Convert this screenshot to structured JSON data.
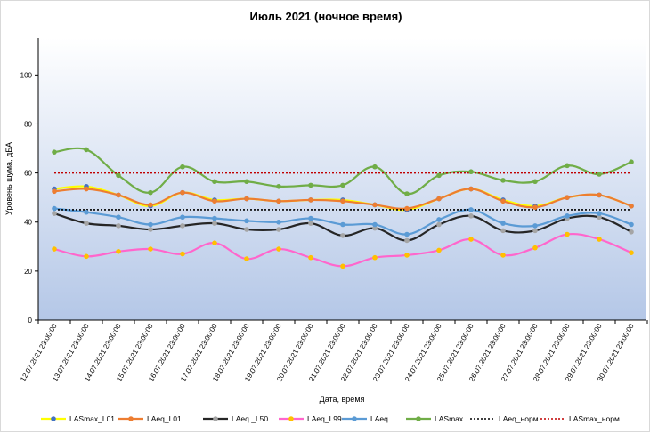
{
  "chart_data": {
    "type": "line",
    "title": "Июль 2021 (ночное время)",
    "xlabel": "Дата, время",
    "ylabel": "Уровень шума, дБА",
    "ylim": [
      0,
      115
    ],
    "yticks": [
      0,
      20,
      40,
      60,
      80,
      100
    ],
    "grid": false,
    "legend_position": "bottom",
    "categories": [
      "12.07.2021 23:00:00",
      "13.07.2021 23:00:00",
      "14.07.2021 23:00:00",
      "15.07.2021 23:00:00",
      "16.07.2021 23:00:00",
      "17.07.2021 23:00:00",
      "18.07.2021 23:00:00",
      "19.07.2021 23:00:00",
      "20.07.2021 23:00:00",
      "21.07.2021 23:00:00",
      "22.07.2021 23:00:00",
      "23.07.2021 23:00:00",
      "24.07.2021 23:00:00",
      "25.07.2021 23:00:00",
      "26.07.2021 23:00:00",
      "27.07.2021 23:00:00",
      "28.07.2021 23:00:00",
      "29.07.2021 23:00:00",
      "30.07.2021 23:00:00"
    ],
    "series": [
      {
        "name": "LASmax_L01",
        "color": "#ffff00",
        "marker_color": "#4472c4",
        "smooth": true,
        "markers": true,
        "values": [
          53.5,
          54.5,
          51.0,
          46.5,
          52.0,
          49.0,
          49.5,
          48.5,
          49.0,
          49.0,
          47.0,
          45.0,
          49.5,
          53.5,
          49.0,
          46.5,
          50.0,
          51.0,
          46.5
        ]
      },
      {
        "name": "LAeq_L01",
        "color": "#ed7d31",
        "marker_color": "#ed7d31",
        "smooth": true,
        "markers": true,
        "values": [
          52.5,
          53.5,
          51.0,
          47.0,
          52.0,
          48.5,
          49.5,
          48.5,
          49.0,
          48.5,
          47.0,
          45.5,
          49.5,
          53.5,
          48.5,
          46.0,
          50.0,
          51.0,
          46.5
        ]
      },
      {
        "name": "LAeq _L50",
        "color": "#262626",
        "marker_color": "#a5a5a5",
        "smooth": true,
        "markers": true,
        "values": [
          43.5,
          39.5,
          38.5,
          37.0,
          38.5,
          39.5,
          37.0,
          37.0,
          39.5,
          34.5,
          37.5,
          32.5,
          39.0,
          42.5,
          36.5,
          36.5,
          41.5,
          42.0,
          36.0
        ]
      },
      {
        "name": "LAeq_L99",
        "color": "#ff66cc",
        "marker_color": "#ffc000",
        "smooth": true,
        "markers": true,
        "values": [
          29.0,
          26.0,
          28.0,
          29.0,
          27.0,
          31.5,
          25.0,
          29.0,
          25.5,
          22.0,
          25.5,
          26.5,
          28.5,
          33.0,
          26.5,
          29.5,
          35.0,
          33.0,
          27.5
        ]
      },
      {
        "name": "LAeq",
        "color": "#5b9bd5",
        "marker_color": "#5b9bd5",
        "smooth": true,
        "markers": true,
        "values": [
          45.5,
          44.0,
          42.0,
          39.0,
          42.0,
          41.5,
          40.5,
          40.0,
          41.5,
          39.0,
          39.0,
          35.0,
          41.0,
          45.0,
          39.5,
          38.5,
          42.5,
          43.5,
          39.0
        ]
      },
      {
        "name": "LASmax",
        "color": "#70ad47",
        "marker_color": "#70ad47",
        "smooth": true,
        "markers": true,
        "values": [
          68.5,
          69.5,
          59.0,
          52.0,
          62.5,
          56.5,
          56.5,
          54.5,
          55.0,
          55.0,
          62.5,
          51.5,
          59.0,
          60.5,
          57.0,
          56.5,
          63.0,
          59.5,
          64.5
        ]
      },
      {
        "name": "LAeq_норм",
        "color": "#000000",
        "dash": "2,2",
        "smooth": false,
        "markers": false,
        "values": [
          45,
          45,
          45,
          45,
          45,
          45,
          45,
          45,
          45,
          45,
          45,
          45,
          45,
          45,
          45,
          45,
          45,
          45,
          45
        ]
      },
      {
        "name": "LASmax_норм",
        "color": "#c00000",
        "dash": "2,2",
        "smooth": false,
        "markers": false,
        "values": [
          60,
          60,
          60,
          60,
          60,
          60,
          60,
          60,
          60,
          60,
          60,
          60,
          60,
          60,
          60,
          60,
          60,
          60,
          60
        ]
      }
    ]
  }
}
